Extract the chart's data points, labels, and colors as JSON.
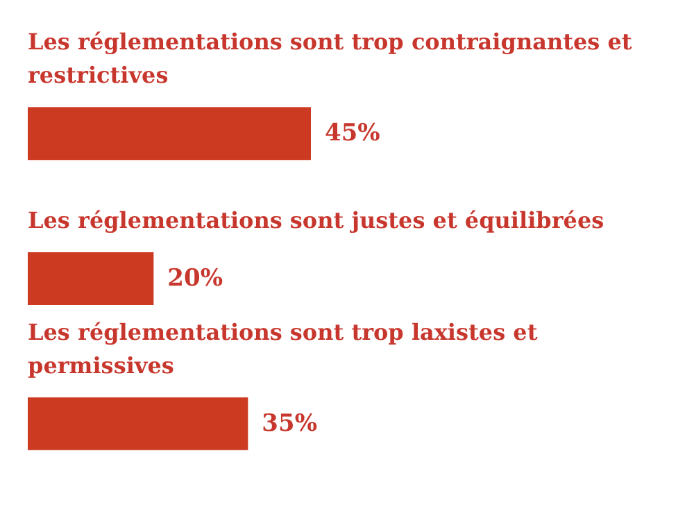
{
  "chart_data": {
    "type": "bar",
    "orientation": "horizontal",
    "tick_labels": "y",
    "categories": [
      "Les réglementations sont trop contraignantes et restrictives",
      "Les réglementations sont justes et équilibrées",
      "Les réglementations sont trop laxistes et permissives"
    ],
    "values": [
      45,
      20,
      35
    ],
    "color": "#cc3a22",
    "value_labels": [
      "45%",
      "20%",
      "35%"
    ]
  }
}
